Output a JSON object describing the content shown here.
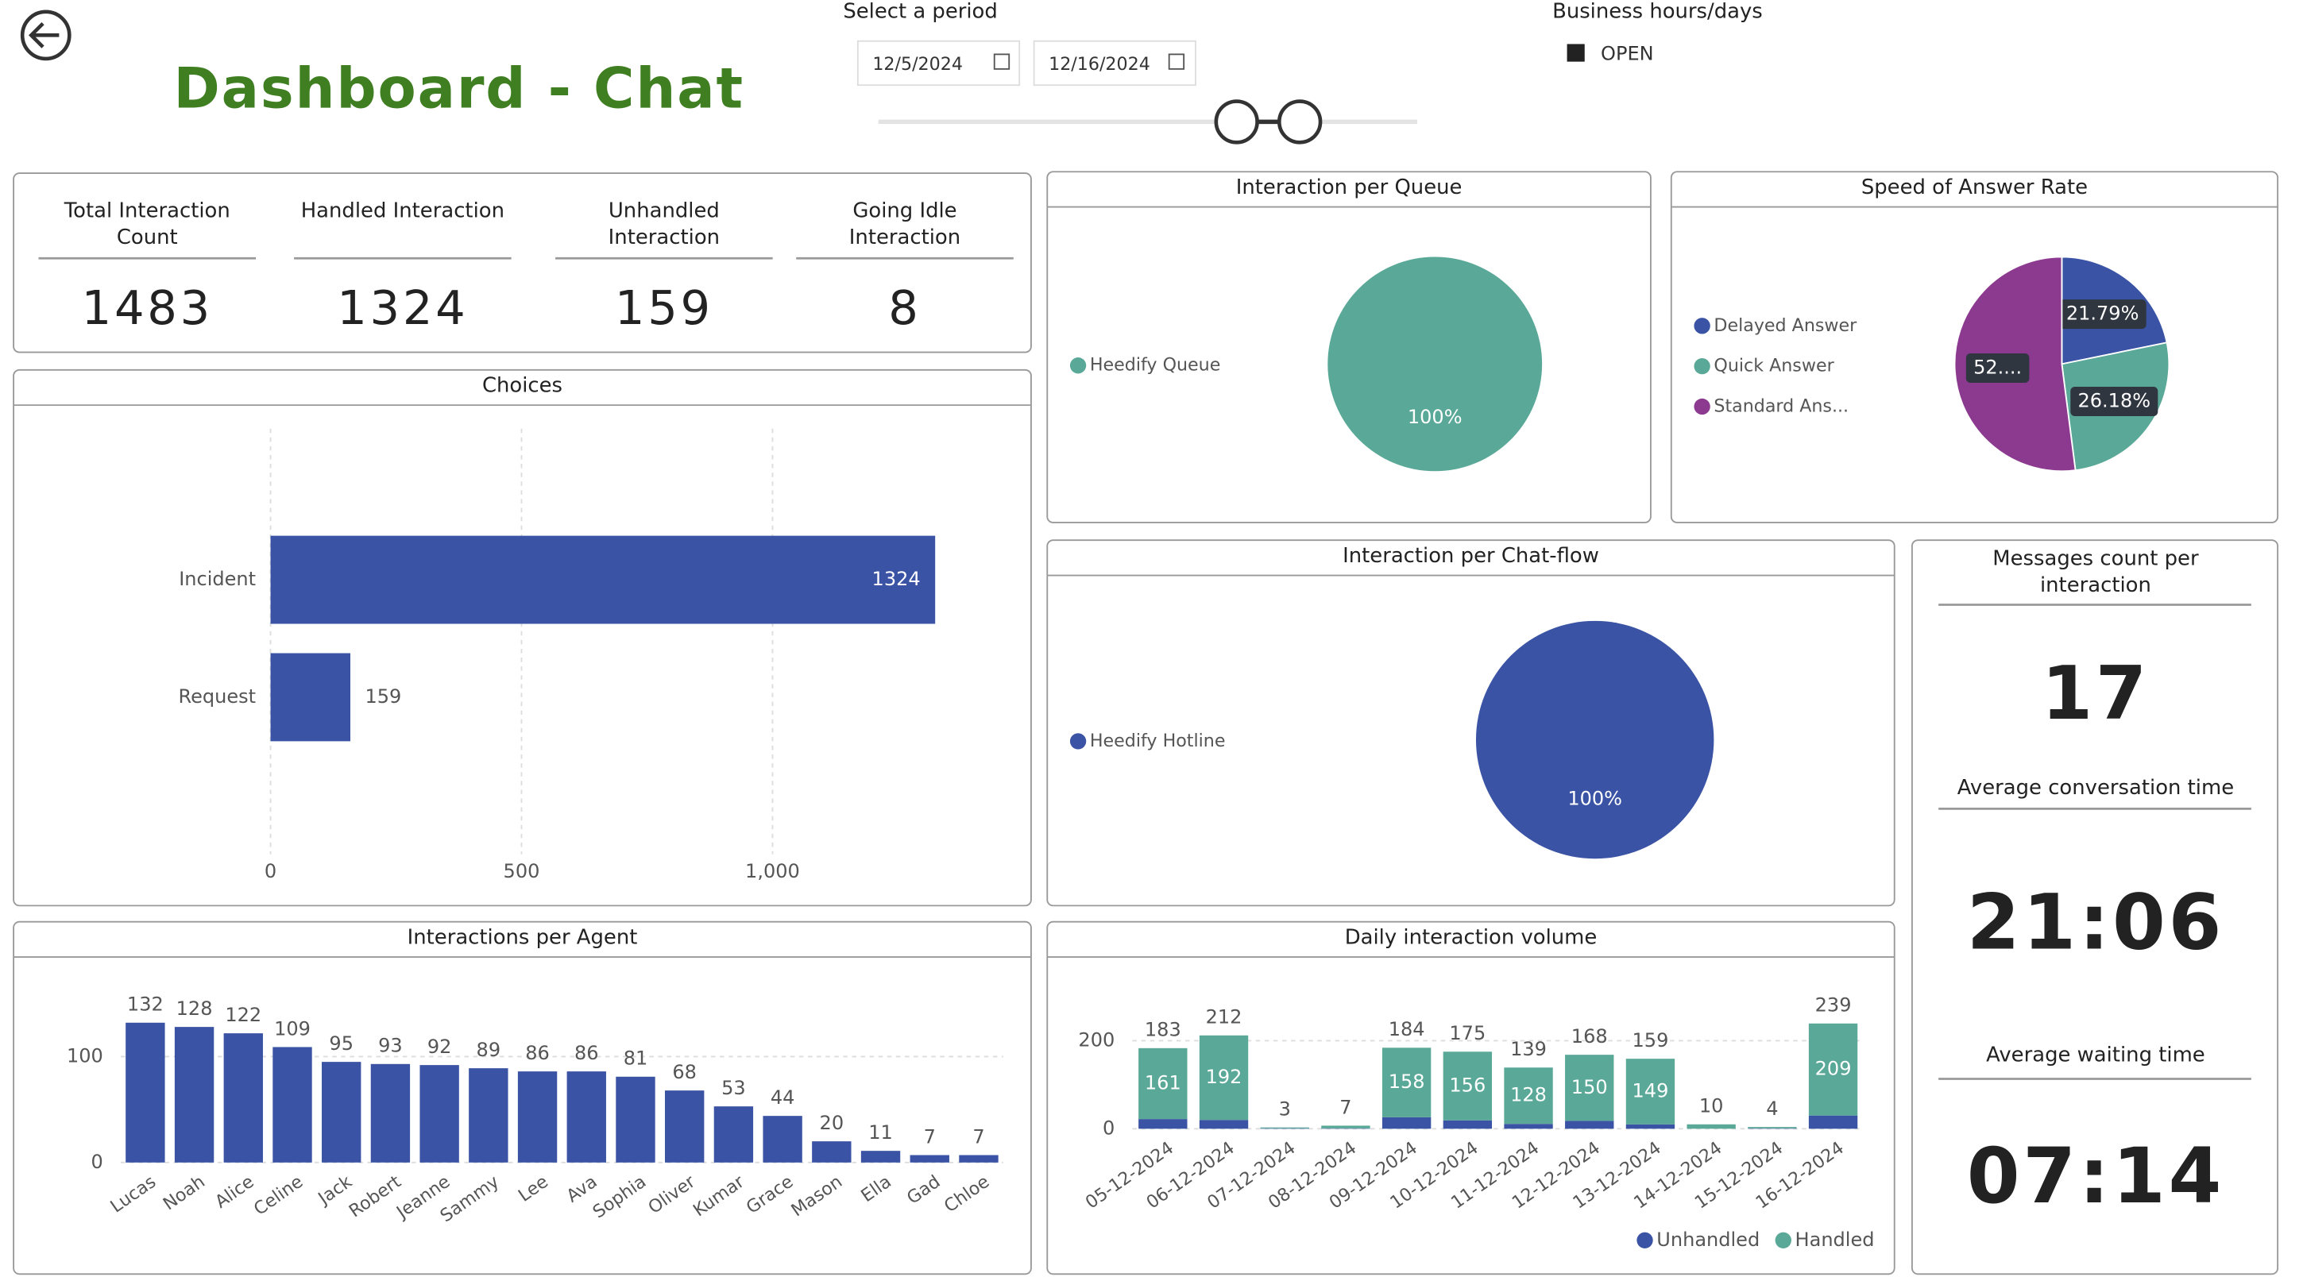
{
  "header": {
    "title": "Dashboard - Chat"
  },
  "period": {
    "label": "Select a period",
    "start": "12/5/2024",
    "end": "12/16/2024"
  },
  "business_hours": {
    "label": "Business hours/days",
    "options": [
      "OPEN"
    ]
  },
  "kpis": [
    {
      "label": "Total Interaction Count",
      "value": 1483
    },
    {
      "label": "Handled Interaction",
      "value": 1324
    },
    {
      "label": "Unhandled Interaction",
      "value": 159
    },
    {
      "label": "Going Idle Interaction",
      "value": 8
    }
  ],
  "side_panel": [
    {
      "label": "Messages count per interaction",
      "value": 17
    },
    {
      "label": "Average conversation time",
      "value": "21:06"
    },
    {
      "label": "Average waiting time",
      "value": "07:14"
    }
  ],
  "chart_data": [
    {
      "type": "bar",
      "orientation": "horizontal",
      "title": "Choices",
      "categories": [
        "Incident",
        "Request"
      ],
      "values": [
        1324,
        159
      ],
      "color": "#3a53a4",
      "xlim": [
        0,
        1480
      ],
      "xticks": [
        0,
        500,
        {
          "value": 1000,
          "label": "1,000"
        }
      ],
      "grid": true
    },
    {
      "type": "pie",
      "title": "Interaction per Queue",
      "categories": [
        "Heedify Queue"
      ],
      "values": [
        100
      ],
      "value_labels": [
        "100%"
      ],
      "colors": [
        "#5aa897"
      ],
      "legend": "left"
    },
    {
      "type": "pie",
      "title": "Speed of Answer Rate",
      "categories": [
        "Delayed Answer",
        "Quick Answer",
        "Standard Ans..."
      ],
      "values": [
        21.79,
        26.18,
        52.03
      ],
      "value_labels": [
        "21.79%",
        "26.18%",
        "52...."
      ],
      "colors": [
        "#3a53a4",
        "#5aa897",
        "#8b3a8f"
      ],
      "legend": "left"
    },
    {
      "type": "pie",
      "title": "Interaction per Chat-flow",
      "categories": [
        "Heedify Hotline"
      ],
      "values": [
        100
      ],
      "value_labels": [
        "100%"
      ],
      "colors": [
        "#3a53a4"
      ],
      "legend": "left"
    },
    {
      "type": "bar",
      "title": "Interactions per Agent",
      "categories": [
        "Lucas",
        "Noah",
        "Alice",
        "Celine",
        "Jack",
        "Robert",
        "Jeanne",
        "Sammy",
        "Lee",
        "Ava",
        "Sophia",
        "Oliver",
        "Kumar",
        "Grace",
        "Mason",
        "Ella",
        "Gad",
        "Chloe"
      ],
      "values": [
        132,
        128,
        122,
        109,
        95,
        93,
        92,
        89,
        86,
        86,
        81,
        68,
        53,
        44,
        20,
        11,
        7,
        7
      ],
      "color": "#3a53a4",
      "ylim": [
        0,
        176
      ],
      "yticks": [
        0,
        100
      ],
      "grid": true
    },
    {
      "type": "bar",
      "stacked": true,
      "title": "Daily interaction volume",
      "categories": [
        "05-12-2024",
        "06-12-2024",
        "07-12-2024",
        "08-12-2024",
        "09-12-2024",
        "10-12-2024",
        "11-12-2024",
        "12-12-2024",
        "13-12-2024",
        "14-12-2024",
        "15-12-2024",
        "16-12-2024"
      ],
      "series": [
        {
          "name": "Unhandled",
          "color": "#3a53a4",
          "values": [
            22,
            20,
            1,
            1,
            26,
            19,
            11,
            18,
            10,
            0,
            1,
            30
          ]
        },
        {
          "name": "Handled",
          "color": "#5aa897",
          "values": [
            161,
            192,
            2,
            6,
            158,
            156,
            128,
            150,
            149,
            10,
            3,
            209
          ]
        }
      ],
      "totals": [
        183,
        212,
        3,
        7,
        184,
        175,
        139,
        168,
        159,
        10,
        4,
        239
      ],
      "ylim": [
        0,
        330
      ],
      "yticks": [
        0,
        200
      ],
      "grid": true,
      "legend": "bottom-right"
    }
  ]
}
